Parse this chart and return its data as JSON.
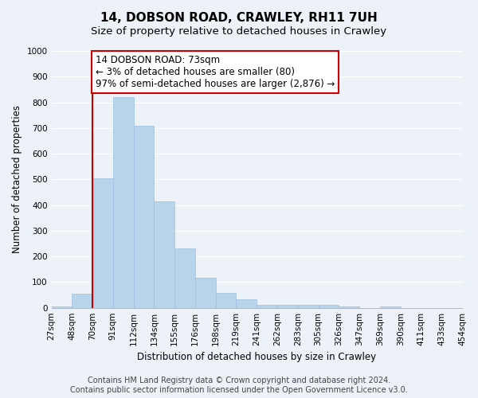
{
  "title": "14, DOBSON ROAD, CRAWLEY, RH11 7UH",
  "subtitle": "Size of property relative to detached houses in Crawley",
  "xlabel": "Distribution of detached houses by size in Crawley",
  "ylabel": "Number of detached properties",
  "bin_edges": [
    "27sqm",
    "48sqm",
    "70sqm",
    "91sqm",
    "112sqm",
    "134sqm",
    "155sqm",
    "176sqm",
    "198sqm",
    "219sqm",
    "241sqm",
    "262sqm",
    "283sqm",
    "305sqm",
    "326sqm",
    "347sqm",
    "369sqm",
    "390sqm",
    "411sqm",
    "433sqm",
    "454sqm"
  ],
  "bar_values": [
    5,
    55,
    505,
    820,
    710,
    415,
    230,
    118,
    57,
    33,
    12,
    12,
    10,
    10,
    5,
    0,
    5,
    0,
    0,
    0
  ],
  "bar_color": "#b8d4ea",
  "bar_edge_color": "#a0c0df",
  "marker_line_color": "#cc0000",
  "marker_bin_edge": 2,
  "annotation_line1": "14 DOBSON ROAD: 73sqm",
  "annotation_line2": "← 3% of detached houses are smaller (80)",
  "annotation_line3": "97% of semi-detached houses are larger (2,876) →",
  "annotation_box_color": "#ffffff",
  "annotation_box_edge": "#cc0000",
  "ylim": [
    0,
    1000
  ],
  "yticks": [
    0,
    100,
    200,
    300,
    400,
    500,
    600,
    700,
    800,
    900,
    1000
  ],
  "footer_line1": "Contains HM Land Registry data © Crown copyright and database right 2024.",
  "footer_line2": "Contains public sector information licensed under the Open Government Licence v3.0.",
  "bg_color": "#edf1f8",
  "plot_bg_color": "#edf1f8",
  "grid_color": "#ffffff",
  "title_fontsize": 11,
  "subtitle_fontsize": 9.5,
  "axis_label_fontsize": 8.5,
  "tick_fontsize": 7.5,
  "annotation_fontsize": 8.5,
  "footer_fontsize": 7
}
